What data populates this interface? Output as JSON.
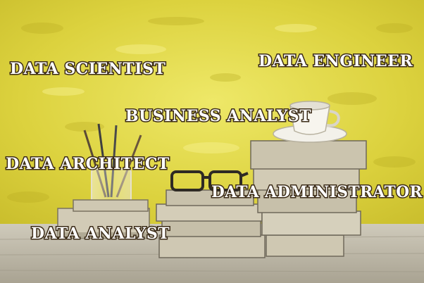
{
  "labels": {
    "data_scientist": "DATA SCIENTIST",
    "data_engineer": "DATA ENGINEER",
    "business_analyst": "BUSINESS ANALYST",
    "data_architect": "DATA ARCHITECT",
    "data_administrator": "DATA ADMINISTRATOR",
    "data_analyst": "DATA ANALYST"
  },
  "colors": {
    "wall": "#d9cf3a",
    "wall_light": "#ece45c",
    "table": "#c8c3b4",
    "book": "#c9c2ae",
    "text_fill": "#ffffff",
    "text_outline": "#3a2a16"
  }
}
